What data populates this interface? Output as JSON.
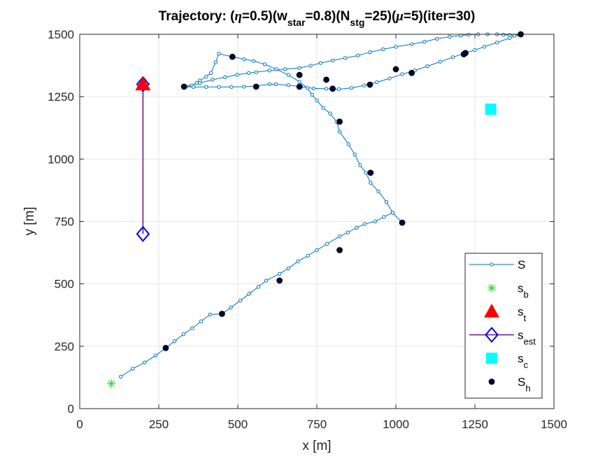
{
  "chart_data": {
    "type": "line",
    "title_parts": [
      {
        "t": "Trajectory: ("
      },
      {
        "t": "η",
        "style": "italic"
      },
      {
        "t": "=0.5)(w"
      },
      {
        "t": "star",
        "style": "sub"
      },
      {
        "t": "=0.8)(N"
      },
      {
        "t": "stg",
        "style": "sub"
      },
      {
        "t": "=25)("
      },
      {
        "t": "μ",
        "style": "italic"
      },
      {
        "t": "=5)(iter=30)"
      }
    ],
    "xlabel": "x [m]",
    "ylabel": "y [m]",
    "xlim": [
      0,
      1500
    ],
    "ylim": [
      0,
      1500
    ],
    "xticks": [
      0,
      250,
      500,
      750,
      1000,
      1250,
      1500
    ],
    "yticks": [
      0,
      250,
      500,
      750,
      1000,
      1250,
      1500
    ],
    "grid": true,
    "legend_position": "bottom-right",
    "series": [
      {
        "key": "S",
        "name": "S",
        "color": "#0072BD",
        "marker": "small-circle",
        "x": [
          130,
          168,
          205,
          240,
          272,
          300,
          328,
          356,
          384,
          412,
          450,
          478,
          508,
          536,
          565,
          590,
          632,
          660,
          690,
          722,
          750,
          782,
          822,
          848,
          876,
          902,
          935,
          962,
          990,
          1020,
          990,
          970,
          945,
          920,
          905,
          887,
          870,
          850,
          822,
          812,
          792,
          770,
          750,
          735,
          720,
          695,
          660,
          622,
          585,
          550,
          520,
          483,
          440,
          430,
          415,
          400,
          380,
          370,
          355,
          330,
          380,
          420,
          460,
          498,
          535,
          558,
          600,
          650,
          695,
          730,
          762,
          800,
          840,
          880,
          918,
          960,
          1000,
          1050,
          1090,
          1130,
          1170,
          1205,
          1230,
          1260,
          1290,
          1320,
          1340,
          1360,
          1375,
          1395,
          1360,
          1320,
          1280,
          1250,
          1220,
          1180,
          1140,
          1100,
          1060,
          1020,
          980,
          940,
          900,
          860,
          820,
          780,
          740,
          700,
          660,
          620,
          600,
          560,
          520,
          480,
          440,
          400,
          360,
          330
        ],
        "y": [
          128,
          160,
          185,
          213,
          243,
          270,
          298,
          322,
          350,
          377,
          380,
          405,
          433,
          460,
          488,
          513,
          540,
          562,
          590,
          613,
          635,
          660,
          690,
          706,
          725,
          740,
          750,
          768,
          785,
          745,
          785,
          828,
          870,
          905,
          945,
          975,
          1018,
          1060,
          1110,
          1150,
          1183,
          1205,
          1235,
          1258,
          1285,
          1310,
          1337,
          1360,
          1380,
          1393,
          1400,
          1410,
          1422,
          1388,
          1345,
          1330,
          1315,
          1305,
          1295,
          1290,
          1305,
          1318,
          1328,
          1338,
          1345,
          1348,
          1355,
          1360,
          1365,
          1374,
          1385,
          1395,
          1405,
          1415,
          1428,
          1440,
          1450,
          1460,
          1470,
          1482,
          1490,
          1495,
          1498,
          1500,
          1500,
          1500,
          1498,
          1497,
          1495,
          1500,
          1485,
          1467,
          1450,
          1437,
          1425,
          1408,
          1390,
          1372,
          1355,
          1340,
          1323,
          1308,
          1295,
          1285,
          1280,
          1282,
          1283,
          1290,
          1296,
          1300,
          1300,
          1293,
          1290,
          1289,
          1289,
          1289,
          1289,
          1289
        ]
      },
      {
        "key": "sb",
        "name": "s_b",
        "color": "#33DD33",
        "marker": "asterisk",
        "x": [
          100
        ],
        "y": [
          100
        ]
      },
      {
        "key": "st",
        "name": "s_t",
        "color": "#FF0000",
        "marker": "triangle",
        "x": [
          200
        ],
        "y": [
          1300
        ]
      },
      {
        "key": "sest",
        "name": "s_est",
        "color": "#7E2F8E",
        "marker": "diamond",
        "marker_color": "#0000FF",
        "x": [
          200,
          200
        ],
        "y": [
          700,
          1300
        ]
      },
      {
        "key": "sc",
        "name": "s_c",
        "color": "#00FFFF",
        "marker": "square",
        "x": [
          1300
        ],
        "y": [
          1200
        ]
      },
      {
        "key": "Sh",
        "name": "S_h",
        "color": "#000033",
        "marker": "filled-circle",
        "x": [
          272,
          450,
          632,
          822,
          1020,
          920,
          822,
          695,
          483,
          330,
          558,
          695,
          780,
          800,
          918,
          1000,
          1050,
          1220,
          1215,
          1395
        ],
        "y": [
          243,
          380,
          513,
          635,
          745,
          945,
          1150,
          1337,
          1410,
          1290,
          1290,
          1290,
          1318,
          1282,
          1298,
          1360,
          1345,
          1425,
          1420,
          1500
        ]
      }
    ],
    "legend": [
      {
        "key": "S",
        "label": "S",
        "sub": ""
      },
      {
        "key": "sb",
        "label": "s",
        "sub": "b"
      },
      {
        "key": "st",
        "label": "s",
        "sub": "t"
      },
      {
        "key": "sest",
        "label": "s",
        "sub": "est"
      },
      {
        "key": "sc",
        "label": "s",
        "sub": "c"
      },
      {
        "key": "Sh",
        "label": "S",
        "sub": "h"
      }
    ]
  }
}
